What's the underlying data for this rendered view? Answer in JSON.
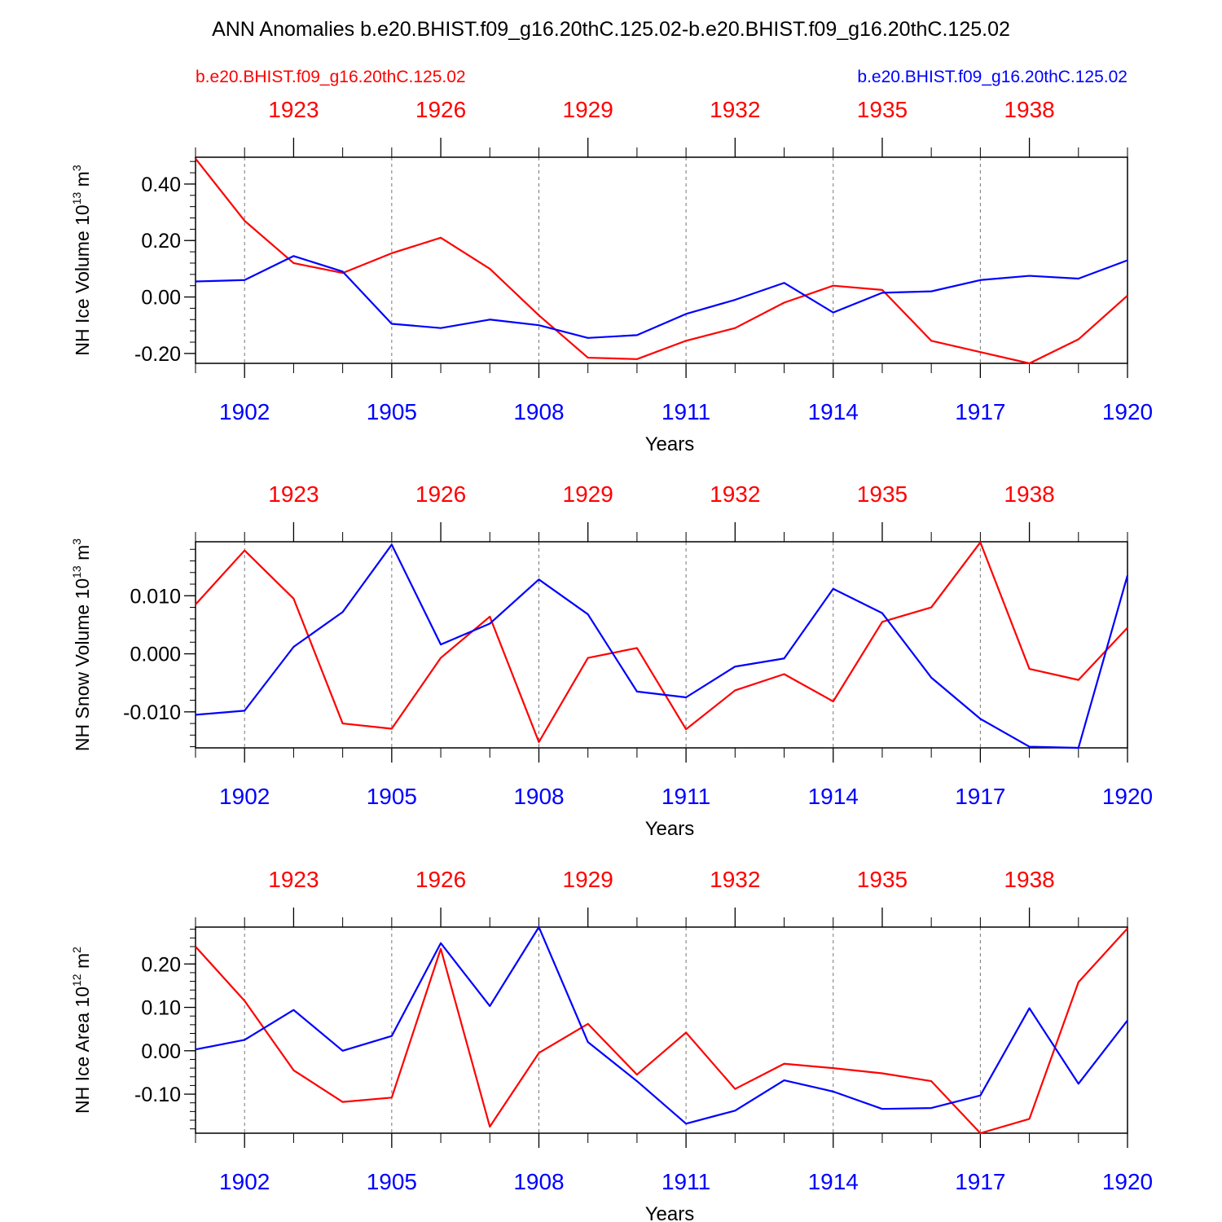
{
  "title": "ANN Anomalies b.e20.BHIST.f09_g16.20thC.125.02-b.e20.BHIST.f09_g16.20thC.125.02",
  "legend": {
    "left": "b.e20.BHIST.f09_g16.20thC.125.02",
    "right": "b.e20.BHIST.f09_g16.20thC.125.02"
  },
  "colors": {
    "red_series": "#ff0000",
    "blue_series": "#0000ff",
    "axis": "#000000"
  },
  "chart_data": [
    {
      "type": "line",
      "ylabel": "NH Ice Volume 10^13 m^3",
      "ylabel_main": "NH Ice Volume 10",
      "ylabel_exp": "13",
      "ylabel_unit": "m",
      "ylabel_unit_exp": "3",
      "xlabel": "Years",
      "ylim": [
        -0.235,
        0.495
      ],
      "yticks": [
        -0.2,
        0.0,
        0.2,
        0.4
      ],
      "ytick_labels": [
        "-0.20",
        "0.00",
        "0.20",
        "0.40"
      ],
      "yminor_step": 0.04,
      "xlim": [
        1901,
        1920
      ],
      "bottom_ticks": [
        1902,
        1905,
        1908,
        1911,
        1914,
        1917,
        1920
      ],
      "bottom_tick_labels": [
        "1902",
        "1905",
        "1908",
        "1911",
        "1914",
        "1917",
        "1920"
      ],
      "top_tick_labels": [
        "1923",
        "1926",
        "1929",
        "1932",
        "1935",
        "1938"
      ],
      "series": [
        {
          "name": "b.e20.BHIST.f09_g16.20thC.125.02",
          "color": "red",
          "values": [
            0.49,
            0.27,
            0.12,
            0.085,
            0.155,
            0.21,
            0.1,
            -0.065,
            -0.215,
            -0.22,
            -0.155,
            -0.11,
            -0.02,
            0.04,
            0.025,
            -0.155,
            -0.195,
            -0.235,
            -0.15,
            0.005
          ]
        },
        {
          "name": "b.e20.BHIST.f09_g16.20thC.125.02",
          "color": "blue",
          "values": [
            0.055,
            0.06,
            0.145,
            0.09,
            -0.095,
            -0.11,
            -0.08,
            -0.1,
            -0.145,
            -0.135,
            -0.06,
            -0.01,
            0.05,
            -0.055,
            0.015,
            0.02,
            0.06,
            0.075,
            0.065,
            0.13
          ]
        }
      ]
    },
    {
      "type": "line",
      "ylabel": "NH Snow Volume 10^13 m^3",
      "ylabel_main": "NH Snow Volume 10",
      "ylabel_exp": "13",
      "ylabel_unit": "m",
      "ylabel_unit_exp": "3",
      "xlabel": "Years",
      "ylim": [
        -0.0162,
        0.0193
      ],
      "yticks": [
        -0.01,
        0.0,
        0.01
      ],
      "ytick_labels": [
        "-0.010",
        "0.000",
        "0.010"
      ],
      "yminor_step": 0.002,
      "xlim": [
        1901,
        1920
      ],
      "bottom_ticks": [
        1902,
        1905,
        1908,
        1911,
        1914,
        1917,
        1920
      ],
      "bottom_tick_labels": [
        "1902",
        "1905",
        "1908",
        "1911",
        "1914",
        "1917",
        "1920"
      ],
      "top_tick_labels": [
        "1923",
        "1926",
        "1929",
        "1932",
        "1935",
        "1938"
      ],
      "series": [
        {
          "name": "b.e20.BHIST.f09_g16.20thC.125.02",
          "color": "red",
          "values": [
            0.0085,
            0.0178,
            0.0095,
            -0.012,
            -0.0129,
            -0.0007,
            0.0064,
            -0.0152,
            -0.0007,
            0.001,
            -0.013,
            -0.0063,
            -0.0035,
            -0.0082,
            0.0055,
            0.008,
            0.0192,
            -0.0026,
            -0.0045,
            0.0045
          ]
        },
        {
          "name": "b.e20.BHIST.f09_g16.20thC.125.02",
          "color": "blue",
          "values": [
            -0.0105,
            -0.0098,
            0.0012,
            0.0072,
            0.0188,
            0.0016,
            0.0052,
            0.0128,
            0.0068,
            -0.0065,
            -0.0075,
            -0.0022,
            -0.0008,
            0.0112,
            0.007,
            -0.0041,
            -0.0112,
            -0.016,
            -0.0162,
            0.0135
          ]
        }
      ]
    },
    {
      "type": "line",
      "ylabel": "NH Ice Area 10^12 m^2",
      "ylabel_main": "NH Ice Area 10",
      "ylabel_exp": "12",
      "ylabel_unit": "m",
      "ylabel_unit_exp": "2",
      "xlabel": "Years",
      "ylim": [
        -0.19,
        0.285
      ],
      "yticks": [
        -0.1,
        0.0,
        0.1,
        0.2
      ],
      "ytick_labels": [
        "-0.10",
        "0.00",
        "0.10",
        "0.20"
      ],
      "yminor_step": 0.02,
      "xlim": [
        1901,
        1920
      ],
      "bottom_ticks": [
        1902,
        1905,
        1908,
        1911,
        1914,
        1917,
        1920
      ],
      "bottom_tick_labels": [
        "1902",
        "1905",
        "1908",
        "1911",
        "1914",
        "1917",
        "1920"
      ],
      "top_tick_labels": [
        "1923",
        "1926",
        "1929",
        "1932",
        "1935",
        "1938"
      ],
      "series": [
        {
          "name": "b.e20.BHIST.f09_g16.20thC.125.02",
          "color": "red",
          "values": [
            0.24,
            0.115,
            -0.045,
            -0.118,
            -0.108,
            0.235,
            -0.175,
            -0.005,
            0.062,
            -0.055,
            0.042,
            -0.088,
            -0.03,
            -0.04,
            -0.052,
            -0.07,
            -0.19,
            -0.157,
            0.158,
            0.282
          ]
        },
        {
          "name": "b.e20.BHIST.f09_g16.20thC.125.02",
          "color": "blue",
          "values": [
            0.003,
            0.025,
            0.094,
            0.0,
            0.034,
            0.248,
            0.103,
            0.285,
            0.02,
            -0.07,
            -0.168,
            -0.138,
            -0.068,
            -0.094,
            -0.134,
            -0.132,
            -0.103,
            0.098,
            -0.076,
            0.07
          ]
        }
      ]
    }
  ]
}
